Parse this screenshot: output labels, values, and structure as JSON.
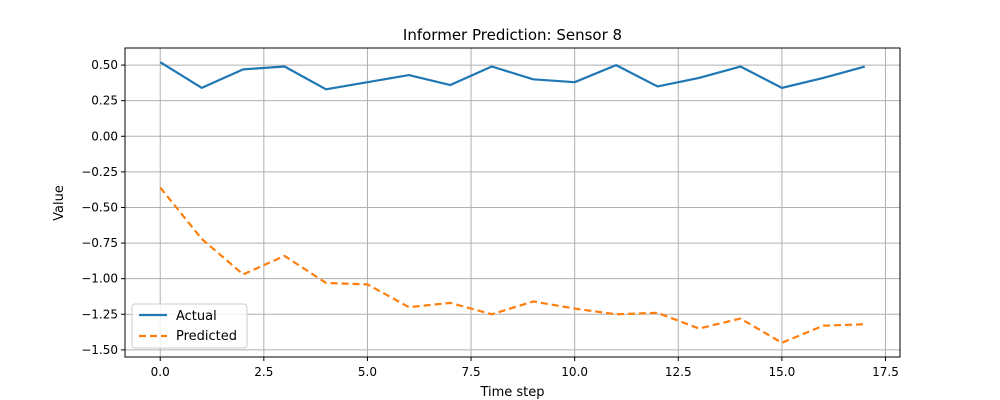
{
  "chart_data": {
    "type": "line",
    "title": "Informer Prediction: Sensor 8",
    "xlabel": "Time step",
    "ylabel": "Value",
    "xlim": [
      -0.85,
      17.85
    ],
    "ylim": [
      -1.55,
      0.62
    ],
    "xticks": [
      0.0,
      2.5,
      5.0,
      7.5,
      10.0,
      12.5,
      15.0,
      17.5
    ],
    "xtick_labels": [
      "0.0",
      "2.5",
      "5.0",
      "7.5",
      "10.0",
      "12.5",
      "15.0",
      "17.5"
    ],
    "yticks": [
      0.5,
      0.25,
      0.0,
      -0.25,
      -0.5,
      -0.75,
      -1.0,
      -1.25,
      -1.5
    ],
    "ytick_labels": [
      "0.50",
      "0.25",
      "0.00",
      "−0.25",
      "−0.50",
      "−0.75",
      "−1.00",
      "−1.25",
      "−1.50"
    ],
    "grid": true,
    "legend_position": "lower-left",
    "x": [
      0,
      1,
      2,
      3,
      4,
      5,
      6,
      7,
      8,
      9,
      10,
      11,
      12,
      13,
      14,
      15,
      16,
      17
    ],
    "series": [
      {
        "name": "Actual",
        "color": "#1f77b4",
        "style": "solid",
        "values": [
          0.52,
          0.34,
          0.47,
          0.49,
          0.33,
          0.38,
          0.43,
          0.36,
          0.49,
          0.4,
          0.38,
          0.5,
          0.35,
          0.41,
          0.49,
          0.34,
          0.41,
          0.49
        ]
      },
      {
        "name": "Predicted",
        "color": "#ff7f0e",
        "style": "dashed",
        "values": [
          -0.36,
          -0.72,
          -0.97,
          -0.84,
          -1.03,
          -1.04,
          -1.2,
          -1.17,
          -1.25,
          -1.16,
          -1.21,
          -1.25,
          -1.24,
          -1.35,
          -1.28,
          -1.45,
          -1.33,
          -1.32
        ]
      }
    ]
  }
}
